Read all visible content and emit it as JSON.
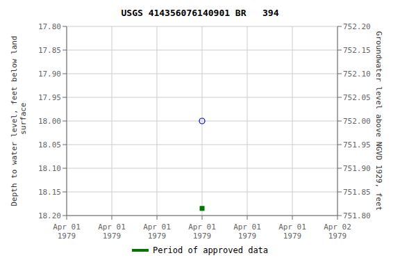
{
  "chart_data": {
    "type": "scatter",
    "title": "USGS 414356076140901 BR   394",
    "y_label": "Depth to water level, feet below land\n surface",
    "y2_label": "Groundwater level above NGVD 1929, feet",
    "categories": [
      "Apr 01\n1979",
      "Apr 01\n1979",
      "Apr 01\n1979",
      "Apr 01\n1979",
      "Apr 01\n1979",
      "Apr 01\n1979",
      "Apr 02\n1979"
    ],
    "series": [
      {
        "color": "#0000cc",
        "marker": "open_circle",
        "values": [
          null,
          null,
          null,
          18.0,
          null,
          null,
          null
        ]
      },
      {
        "name": "Period of approved data",
        "color": "#007700",
        "marker": "square",
        "values": [
          null,
          null,
          null,
          18.185,
          null,
          null,
          null
        ]
      }
    ],
    "ylim": [
      18.2,
      17.8
    ],
    "yticks": [
      {
        "value": 17.8,
        "label": "17.80"
      },
      17.85,
      {
        "value": 17.9,
        "label": "17.90"
      },
      17.95,
      {
        "value": 18.0,
        "label": "18.00"
      },
      18.05,
      {
        "value": 18.1,
        "label": "18.10"
      },
      18.15,
      {
        "value": 18.2,
        "label": "18.20"
      }
    ],
    "y2lim": [
      751.8,
      752.2
    ],
    "y2ticks": [
      {
        "value": 751.8,
        "label": "751.80"
      },
      751.85,
      {
        "value": 751.9,
        "label": "751.90"
      },
      751.95,
      {
        "value": 752.0,
        "label": "752.00"
      },
      752.05,
      {
        "value": 752.1,
        "label": "752.10"
      },
      752.15,
      {
        "value": 752.2,
        "label": "752.20"
      }
    ],
    "grid": true,
    "legend": "bottom"
  }
}
